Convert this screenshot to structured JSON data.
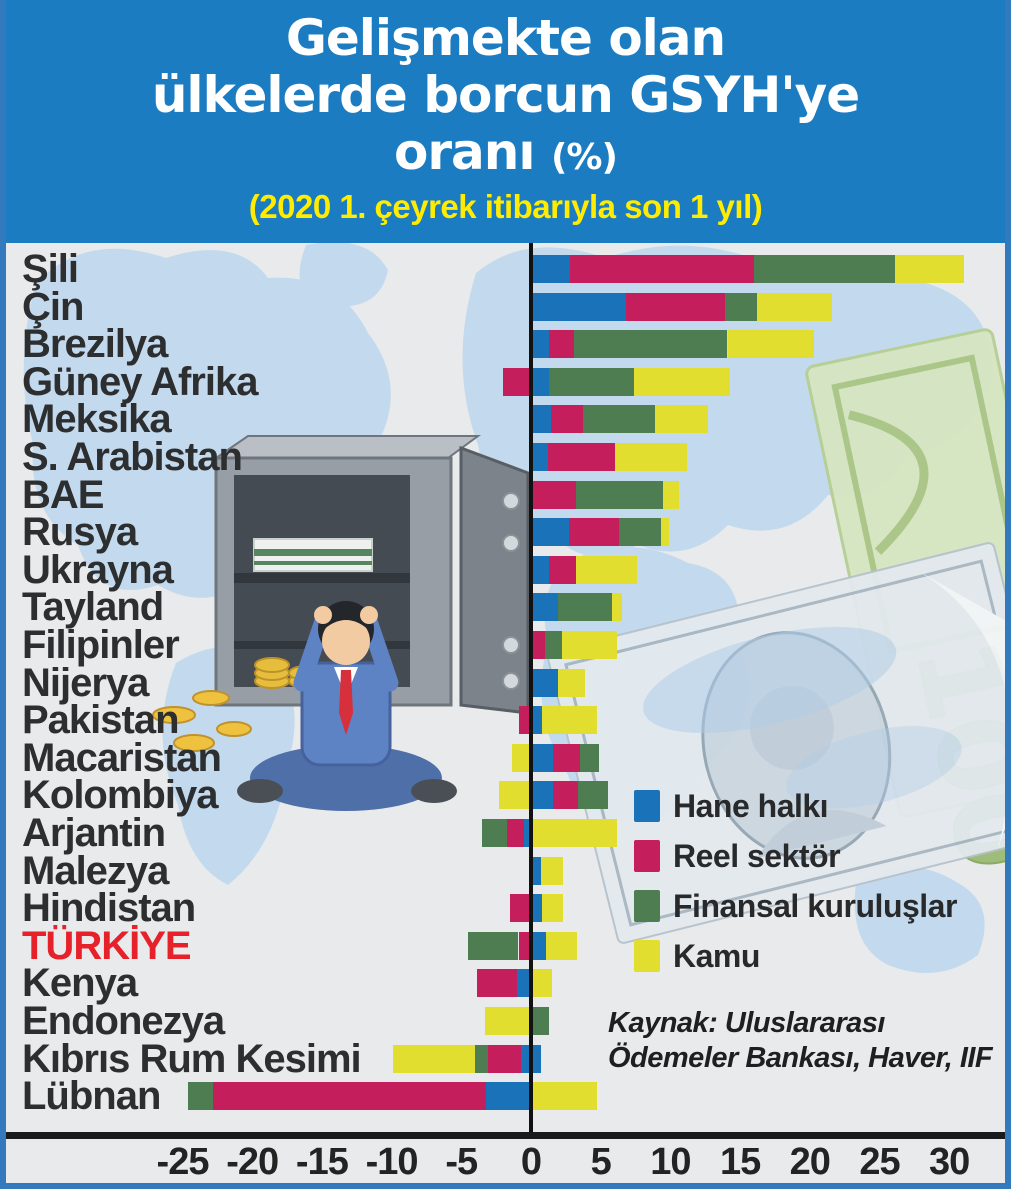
{
  "header": {
    "title_line1": "Gelişmekte olan",
    "title_line2": "ülkelerde borcun GSYH'ye",
    "title_line3": "oranı",
    "title_pct": "(%)",
    "subtitle": "(2020 1. çeyrek itibarıyla son 1 yıl)"
  },
  "colors": {
    "header_bg": "#1b7cc2",
    "subtitle_yellow": "#ffec00",
    "frame_blue": "#3379bd",
    "chart_bg": "#e9eaec",
    "map_blue": "#c3daee",
    "label_dark": "#2d2e30",
    "turkiye_red": "#e62129",
    "hane": "#1a73b9",
    "reel": "#c41e5d",
    "fin": "#4e7d52",
    "kamu": "#e2de30"
  },
  "legend": {
    "items": [
      {
        "key": "hane",
        "label": "Hane halkı",
        "color": "#1a73b9"
      },
      {
        "key": "reel",
        "label": "Reel sektör",
        "color": "#c41e5d"
      },
      {
        "key": "fin",
        "label": "Finansal kuruluşlar",
        "color": "#4e7d52"
      },
      {
        "key": "kamu",
        "label": "Kamu",
        "color": "#e2de30"
      }
    ]
  },
  "source": {
    "line1": "Kaynak: Uluslararası",
    "line2": "Ödemeler Bankası, Haver, IIF"
  },
  "axis": {
    "ticks": [
      {
        "label": "-25",
        "value": -25
      },
      {
        "label": "-20",
        "value": -20
      },
      {
        "label": "-15",
        "value": -15
      },
      {
        "label": "-10",
        "value": -10
      },
      {
        "label": "-5",
        "value": -5
      },
      {
        "label": "0",
        "value": 0
      },
      {
        "label": "5",
        "value": 5
      },
      {
        "label": "10",
        "value": 10
      },
      {
        "label": "15",
        "value": 15
      },
      {
        "label": "20",
        "value": 20
      },
      {
        "label": "25",
        "value": 25
      },
      {
        "label": "30",
        "value": 30
      }
    ]
  },
  "decorations": [
    "world-map-illustration",
    "open-safe-illustration",
    "cash-bundle-illustration",
    "gold-coins-illustration",
    "worried-man-illustration",
    "dollar-bill-illustration",
    "euro-note-illustration"
  ],
  "chart_data": {
    "type": "bar",
    "variant": "horizontal-stacked-diverging",
    "title": "Gelişmekte olan ülkelerde borcun GSYH'ye oranı (%)",
    "subtitle": "(2020 1. çeyrek itibarıyla son 1 yıl)",
    "unit": "%",
    "xlim": [
      -27,
      32
    ],
    "grid": false,
    "legend_position": "middle-right",
    "components": {
      "hane": "Hane halkı",
      "reel": "Reel sektör",
      "fin": "Finansal kuruluşlar",
      "kamu": "Kamu"
    },
    "highlight_country": "TÜRKİYE",
    "countries": [
      {
        "name": "Şili",
        "segments": [
          {
            "c": "hane",
            "from": 0,
            "to": 2.8
          },
          {
            "c": "reel",
            "from": 2.8,
            "to": 16.0
          },
          {
            "c": "fin",
            "from": 16.0,
            "to": 26.1
          },
          {
            "c": "kamu",
            "from": 26.1,
            "to": 31.1
          }
        ]
      },
      {
        "name": "Çin",
        "segments": [
          {
            "c": "hane",
            "from": 0,
            "to": 6.8
          },
          {
            "c": "reel",
            "from": 6.8,
            "to": 13.9
          },
          {
            "c": "fin",
            "from": 13.9,
            "to": 16.2
          },
          {
            "c": "kamu",
            "from": 16.2,
            "to": 21.6
          }
        ]
      },
      {
        "name": "Brezilya",
        "segments": [
          {
            "c": "hane",
            "from": 0,
            "to": 1.3
          },
          {
            "c": "reel",
            "from": 1.3,
            "to": 3.1
          },
          {
            "c": "fin",
            "from": 3.1,
            "to": 14.1
          },
          {
            "c": "kamu",
            "from": 14.1,
            "to": 20.3
          }
        ]
      },
      {
        "name": "Güney Afrika",
        "segments": [
          {
            "c": "reel",
            "from": -2.0,
            "to": 0
          },
          {
            "c": "hane",
            "from": 0,
            "to": 1.3
          },
          {
            "c": "fin",
            "from": 1.3,
            "to": 7.4
          },
          {
            "c": "kamu",
            "from": 7.4,
            "to": 14.3
          }
        ]
      },
      {
        "name": "Meksika",
        "segments": [
          {
            "c": "hane",
            "from": 0,
            "to": 1.4
          },
          {
            "c": "reel",
            "from": 1.4,
            "to": 3.7
          },
          {
            "c": "fin",
            "from": 3.7,
            "to": 8.9
          },
          {
            "c": "kamu",
            "from": 8.9,
            "to": 12.7
          }
        ]
      },
      {
        "name": "S. Arabistan",
        "segments": [
          {
            "c": "hane",
            "from": 0,
            "to": 1.2
          },
          {
            "c": "reel",
            "from": 1.2,
            "to": 6.0
          },
          {
            "c": "kamu",
            "from": 6.0,
            "to": 11.2
          }
        ]
      },
      {
        "name": "BAE",
        "segments": [
          {
            "c": "reel",
            "from": 0,
            "to": 3.2
          },
          {
            "c": "fin",
            "from": 3.2,
            "to": 9.5
          },
          {
            "c": "kamu",
            "from": 9.5,
            "to": 10.6
          }
        ]
      },
      {
        "name": "Rusya",
        "segments": [
          {
            "c": "hane",
            "from": 0,
            "to": 2.7
          },
          {
            "c": "reel",
            "from": 2.7,
            "to": 6.3
          },
          {
            "c": "fin",
            "from": 6.3,
            "to": 9.3
          },
          {
            "c": "kamu",
            "from": 9.3,
            "to": 9.9
          }
        ]
      },
      {
        "name": "Ukrayna",
        "segments": [
          {
            "c": "hane",
            "from": 0,
            "to": 1.3
          },
          {
            "c": "reel",
            "from": 1.3,
            "to": 3.2
          },
          {
            "c": "kamu",
            "from": 3.2,
            "to": 7.6
          }
        ]
      },
      {
        "name": "Tayland",
        "segments": [
          {
            "c": "hane",
            "from": 0,
            "to": 1.9
          },
          {
            "c": "fin",
            "from": 1.9,
            "to": 5.8
          },
          {
            "c": "kamu",
            "from": 5.8,
            "to": 6.5
          }
        ]
      },
      {
        "name": "Filipinler",
        "segments": [
          {
            "c": "reel",
            "from": 0,
            "to": 1.0
          },
          {
            "c": "fin",
            "from": 1.0,
            "to": 2.2
          },
          {
            "c": "kamu",
            "from": 2.2,
            "to": 6.2
          }
        ]
      },
      {
        "name": "Nijerya",
        "segments": [
          {
            "c": "hane",
            "from": 0,
            "to": 1.9
          },
          {
            "c": "kamu",
            "from": 1.9,
            "to": 3.9
          }
        ]
      },
      {
        "name": "Pakistan",
        "segments": [
          {
            "c": "reel",
            "from": -0.9,
            "to": 0
          },
          {
            "c": "hane",
            "from": 0,
            "to": 0.8
          },
          {
            "c": "kamu",
            "from": 0.8,
            "to": 4.7
          }
        ]
      },
      {
        "name": "Macaristan",
        "segments": [
          {
            "c": "kamu",
            "from": -1.4,
            "to": 0
          },
          {
            "c": "hane",
            "from": 0,
            "to": 1.6
          },
          {
            "c": "reel",
            "from": 1.6,
            "to": 3.5
          },
          {
            "c": "fin",
            "from": 3.5,
            "to": 4.9
          }
        ]
      },
      {
        "name": "Kolombiya",
        "segments": [
          {
            "c": "kamu",
            "from": -2.3,
            "to": 0
          },
          {
            "c": "hane",
            "from": 0,
            "to": 1.6
          },
          {
            "c": "reel",
            "from": 1.6,
            "to": 3.4
          },
          {
            "c": "fin",
            "from": 3.4,
            "to": 5.5
          }
        ]
      },
      {
        "name": "Arjantin",
        "segments": [
          {
            "c": "fin",
            "from": -3.5,
            "to": -1.7
          },
          {
            "c": "reel",
            "from": -1.7,
            "to": -0.5
          },
          {
            "c": "hane",
            "from": -0.5,
            "to": 0
          },
          {
            "c": "kamu",
            "from": 0,
            "to": 6.2
          }
        ]
      },
      {
        "name": "Malezya",
        "segments": [
          {
            "c": "hane",
            "from": 0,
            "to": 0.7
          },
          {
            "c": "kamu",
            "from": 0.7,
            "to": 2.3
          }
        ]
      },
      {
        "name": "Hindistan",
        "segments": [
          {
            "c": "reel",
            "from": -1.5,
            "to": 0
          },
          {
            "c": "hane",
            "from": 0,
            "to": 0.8
          },
          {
            "c": "kamu",
            "from": 0.8,
            "to": 2.3
          }
        ]
      },
      {
        "name": "TÜRKİYE",
        "highlight": true,
        "segments": [
          {
            "c": "fin",
            "from": -4.5,
            "to": -0.9
          },
          {
            "c": "reel",
            "from": -0.9,
            "to": 0
          },
          {
            "c": "hane",
            "from": 0,
            "to": 1.1
          },
          {
            "c": "kamu",
            "from": 1.1,
            "to": 3.3
          }
        ]
      },
      {
        "name": "Kenya",
        "segments": [
          {
            "c": "reel",
            "from": -3.9,
            "to": -1.0
          },
          {
            "c": "hane",
            "from": -1.0,
            "to": 0
          },
          {
            "c": "kamu",
            "from": 0,
            "to": 1.5
          }
        ]
      },
      {
        "name": "Endonezya",
        "segments": [
          {
            "c": "kamu",
            "from": -3.3,
            "to": 0
          },
          {
            "c": "fin",
            "from": 0,
            "to": 1.3
          }
        ]
      },
      {
        "name": "Kıbrıs Rum Kesimi",
        "segments": [
          {
            "c": "kamu",
            "from": -9.9,
            "to": -4.0
          },
          {
            "c": "fin",
            "from": -4.0,
            "to": -3.1
          },
          {
            "c": "reel",
            "from": -3.1,
            "to": -0.7
          },
          {
            "c": "hane",
            "from": -0.7,
            "to": 0.7
          }
        ]
      },
      {
        "name": "Lübnan",
        "segments": [
          {
            "c": "fin",
            "from": -24.6,
            "to": -22.8
          },
          {
            "c": "reel",
            "from": -22.8,
            "to": -3.2
          },
          {
            "c": "hane",
            "from": -3.2,
            "to": 0
          },
          {
            "c": "kamu",
            "from": 0,
            "to": 4.7
          }
        ]
      }
    ]
  }
}
